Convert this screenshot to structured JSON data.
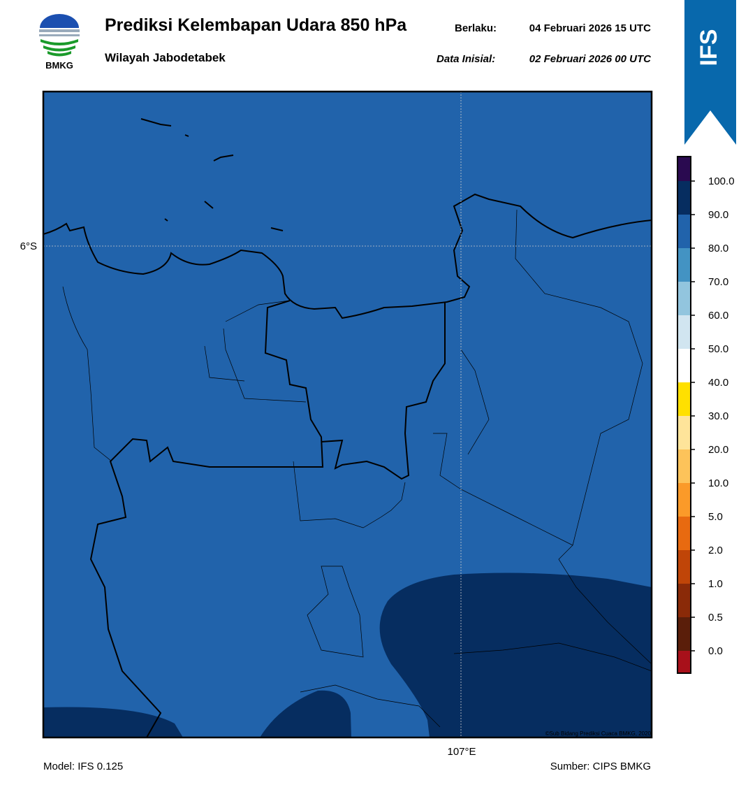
{
  "header": {
    "logo_text": "BMKG",
    "title": "Prediksi Kelembapan Udara 850 hPa",
    "region": "Wilayah Jabodetabek",
    "valid_label": "Berlaku:",
    "valid_time": "04 Februari 2026 15 UTC",
    "init_label": "Data Inisial:",
    "init_time": "02 Februari 2026 00 UTC"
  },
  "banner": {
    "text": "IFS"
  },
  "map": {
    "lat_label": "6°S",
    "lon_label": "107°E",
    "credit": "©Sub Bidang Prediksi Cuaca BMKG, 2020"
  },
  "colorbar": {
    "labels": [
      "100.0",
      "90.0",
      "80.0",
      "70.0",
      "60.0",
      "50.0",
      "40.0",
      "30.0",
      "20.0",
      "10.0",
      "5.0",
      "2.0",
      "1.0",
      "0.5",
      "0.0"
    ]
  },
  "footer": {
    "model": "Model: IFS 0.125",
    "source": "Sumber: CIPS BMKG"
  }
}
